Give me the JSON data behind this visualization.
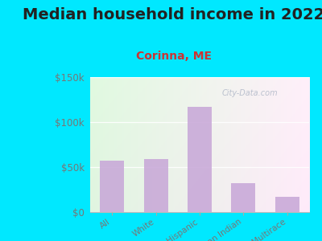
{
  "title": "Median household income in 2022",
  "subtitle": "Corinna, ME",
  "categories": [
    "All",
    "White",
    "Hispanic",
    "American Indian",
    "Multirace"
  ],
  "values": [
    57000,
    59000,
    117000,
    32000,
    17000
  ],
  "bar_color": "#c8a8d8",
  "background_outer": "#00e8ff",
  "ylim": [
    0,
    150000
  ],
  "yticks": [
    0,
    50000,
    100000,
    150000
  ],
  "ytick_labels": [
    "$0",
    "$50k",
    "$100k",
    "$150k"
  ],
  "title_fontsize": 14,
  "subtitle_fontsize": 10,
  "tick_color": "#777777",
  "watermark": "City-Data.com",
  "title_color": "#222222",
  "subtitle_color": "#cc3333"
}
